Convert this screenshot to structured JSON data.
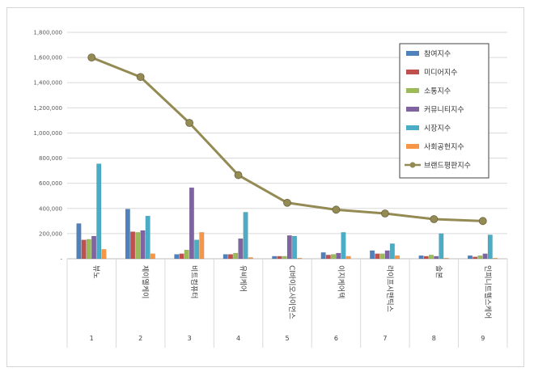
{
  "chart_data": {
    "type": "bar",
    "y_ticks": [
      "-",
      "200,000",
      "400,000",
      "600,000",
      "800,000",
      "1,000,000",
      "1,200,000",
      "1,400,000",
      "1,600,000",
      "1,800,000"
    ],
    "ylim": [
      0,
      1800000
    ],
    "grid": true,
    "legend_position": "top-right",
    "categories": [
      "뷰노",
      "제이엘케이",
      "비트컴퓨터",
      "유비케어",
      "Cl바이오사이언스",
      "이지케어텍",
      "라이프시맨틱스",
      "솔본",
      "인피니트헬스케어"
    ],
    "ranks": [
      "1",
      "2",
      "3",
      "4",
      "5",
      "6",
      "7",
      "8",
      "9"
    ],
    "series": [
      {
        "name": "참여지수",
        "color": "#4f81bd",
        "values": [
          280000,
          395000,
          35000,
          35000,
          20000,
          50000,
          65000,
          25000,
          25000
        ]
      },
      {
        "name": "미디어지수",
        "color": "#c0504d",
        "values": [
          150000,
          215000,
          40000,
          35000,
          20000,
          30000,
          40000,
          20000,
          15000
        ]
      },
      {
        "name": "소통지수",
        "color": "#9bbb59",
        "values": [
          155000,
          210000,
          70000,
          45000,
          20000,
          35000,
          40000,
          30000,
          25000
        ]
      },
      {
        "name": "커뮤니티지수",
        "color": "#8064a2",
        "values": [
          180000,
          225000,
          565000,
          160000,
          185000,
          45000,
          65000,
          20000,
          40000
        ]
      },
      {
        "name": "시장지수",
        "color": "#4bacc6",
        "values": [
          755000,
          340000,
          150000,
          370000,
          180000,
          210000,
          120000,
          200000,
          190000
        ]
      },
      {
        "name": "사회공헌지수",
        "color": "#f79646",
        "values": [
          75000,
          40000,
          210000,
          10000,
          5000,
          20000,
          25000,
          5000,
          5000
        ]
      }
    ],
    "line_series": {
      "name": "브랜드평판지수",
      "color": "#948a54",
      "values": [
        1600000,
        1445000,
        1080000,
        665000,
        445000,
        390000,
        360000,
        315000,
        300000
      ]
    }
  }
}
